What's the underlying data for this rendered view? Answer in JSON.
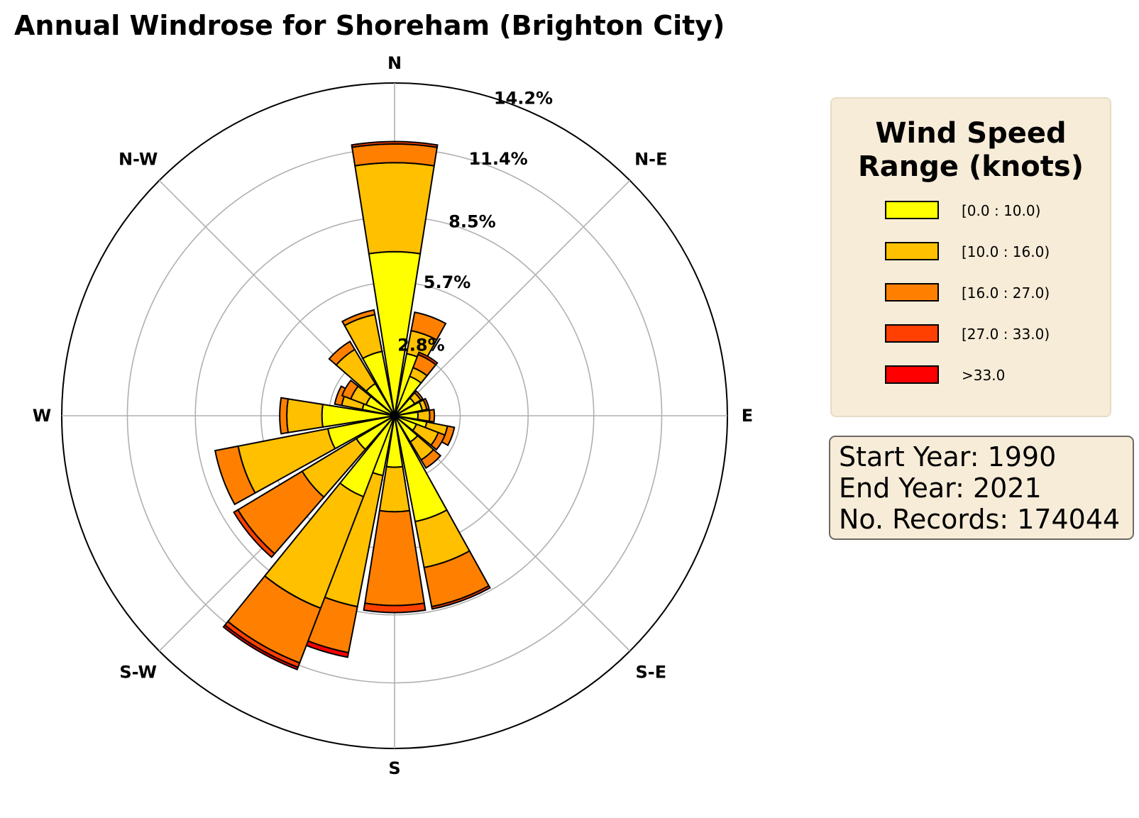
{
  "title": "Annual Windrose for Shoreham (Brighton City)",
  "chart_data": {
    "type": "windrose",
    "title": "Annual Windrose for Shoreham (Brighton City)",
    "units": "%",
    "r_max": 14.2,
    "radial_ticks": [
      2.8,
      5.7,
      8.5,
      11.4,
      14.2
    ],
    "radial_tick_labels": [
      "2.8%",
      "5.7%",
      "8.5%",
      "11.4%",
      "14.2%"
    ],
    "compass_labels": [
      {
        "label": "N",
        "angle": 0
      },
      {
        "label": "N-E",
        "angle": 45
      },
      {
        "label": "E",
        "angle": 90
      },
      {
        "label": "S-E",
        "angle": 135
      },
      {
        "label": "S",
        "angle": 180
      },
      {
        "label": "S-W",
        "angle": 225
      },
      {
        "label": "W",
        "angle": 270
      },
      {
        "label": "N-W",
        "angle": 315
      }
    ],
    "grid": true,
    "bins": [
      {
        "label": "[0.0 : 10.0)",
        "color": "#ffff00"
      },
      {
        "label": "[10.0 : 16.0)",
        "color": "#ffc000"
      },
      {
        "label": "[16.0 : 27.0)",
        "color": "#ff8000"
      },
      {
        "label": "[27.0 : 33.0)",
        "color": "#ff4000"
      },
      {
        "label": ">33.0",
        "color": "#ff0000"
      }
    ],
    "sector_width_deg": 18,
    "direction_bins_deg": [
      0,
      20,
      30,
      50,
      70,
      90,
      110,
      120,
      140,
      160,
      180,
      200,
      210,
      230,
      250,
      270,
      290,
      300,
      320,
      340
    ],
    "cumulative_values": [
      [
        7.0,
        10.8,
        11.6,
        11.7,
        11.7
      ],
      [
        2.7,
        3.7,
        4.5,
        4.5,
        4.5
      ],
      [
        1.8,
        2.2,
        2.8,
        2.9,
        2.9
      ],
      [
        1.0,
        1.3,
        1.4,
        1.4,
        1.4
      ],
      [
        1.2,
        1.4,
        1.5,
        1.5,
        1.5
      ],
      [
        1.0,
        1.5,
        1.7,
        1.7,
        1.7
      ],
      [
        1.4,
        2.3,
        2.6,
        2.6,
        2.6
      ],
      [
        1.0,
        2.0,
        2.3,
        2.3,
        2.3
      ],
      [
        1.3,
        2.2,
        2.6,
        2.6,
        2.6
      ],
      [
        4.6,
        6.6,
        8.3,
        8.4,
        8.4
      ],
      [
        2.2,
        4.1,
        8.1,
        8.4,
        8.4
      ],
      [
        2.6,
        8.3,
        10.3,
        10.3,
        10.5
      ],
      [
        3.7,
        8.8,
        11.3,
        11.5,
        11.6
      ],
      [
        1.9,
        4.6,
        7.8,
        8.0,
        8.0
      ],
      [
        2.9,
        6.8,
        7.8,
        7.8,
        7.8
      ],
      [
        3.1,
        4.6,
        4.9,
        4.9,
        4.9
      ],
      [
        1.4,
        2.3,
        2.6,
        2.6,
        2.6
      ],
      [
        1.3,
        2.0,
        2.4,
        2.4,
        2.4
      ],
      [
        1.6,
        3.3,
        3.7,
        3.7,
        3.7
      ],
      [
        2.8,
        4.4,
        4.6,
        4.6,
        4.6
      ]
    ]
  },
  "legend": {
    "title_line1": "Wind Speed",
    "title_line2": "Range (knots)",
    "items": [
      {
        "label": "[0.0 : 10.0)",
        "color": "#ffff00"
      },
      {
        "label": "[10.0 : 16.0)",
        "color": "#ffc000"
      },
      {
        "label": "[16.0 : 27.0)",
        "color": "#ff8000"
      },
      {
        "label": "[27.0 : 33.0)",
        "color": "#ff4000"
      },
      {
        "label": ">33.0",
        "color": "#ff0000"
      }
    ]
  },
  "info": {
    "start_year": "Start Year: 1990",
    "end_year": "End Year: 2021",
    "records": "No. Records: 174044"
  }
}
